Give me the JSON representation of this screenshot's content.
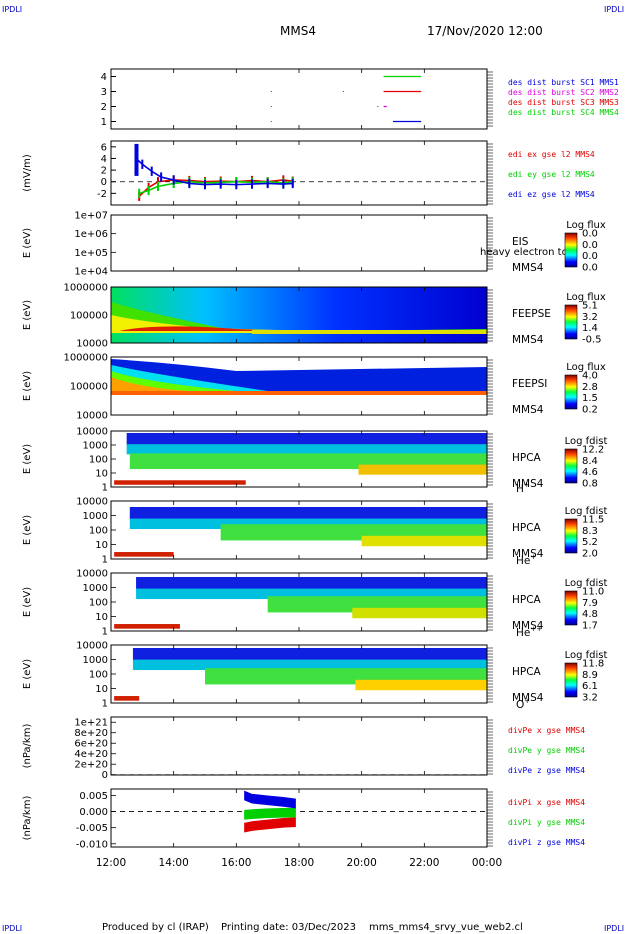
{
  "header": {
    "corner_tag": "IPDLI",
    "spacecraft": "MMS4",
    "datetime": "17/Nov/2020 12:00"
  },
  "footer": {
    "produced_by": "Produced by cl (IRAP)",
    "printing_date": "Printing date: 03/Dec/2023",
    "script_name": "mms_mms4_srvy_vue_web2.cl"
  },
  "time_axis": {
    "ticks": [
      "12:00",
      "14:00",
      "16:00",
      "18:00",
      "20:00",
      "22:00",
      "00:00"
    ],
    "start_hour": 12,
    "end_hour": 24
  },
  "colors": {
    "red": "#e00000",
    "green": "#00d000",
    "blue": "#0000e0",
    "magenta": "#e000e0",
    "dark_blue": "#0000a0"
  },
  "chart_data": [
    {
      "type": "line",
      "panel": "burst",
      "ylim": [
        0.5,
        4.5
      ],
      "yticks": [
        "1",
        "2",
        "3",
        "4"
      ],
      "legend": [
        {
          "name": "des dist burst SC1 MMS1",
          "color": "#0000e0"
        },
        {
          "name": "des dist burst SC2 MMS2",
          "color": "#e000e0"
        },
        {
          "name": "des dist burst SC3 MMS3",
          "color": "#e00000"
        },
        {
          "name": "des dist burst SC4 MMS4",
          "color": "#00d000"
        }
      ],
      "intervals": [
        {
          "level": 4,
          "start": 20.7,
          "end": 21.9,
          "color": "#00d000"
        },
        {
          "level": 3,
          "start": 20.7,
          "end": 21.9,
          "color": "#e00000"
        },
        {
          "level": 2,
          "start": 20.7,
          "end": 20.8,
          "color": "#e000e0"
        },
        {
          "level": 1,
          "start": 21.0,
          "end": 21.9,
          "color": "#0000e0"
        }
      ]
    },
    {
      "type": "line",
      "panel": "edi",
      "ylabel": "(mV/m)",
      "ylim": [
        -4,
        7
      ],
      "yticks": [
        "6",
        "4",
        "2",
        "0",
        "-2"
      ],
      "legend": [
        {
          "name": "edi ex gse l2 MMS4",
          "color": "#e00000"
        },
        {
          "name": "edi ey gse l2 MMS4",
          "color": "#00d000"
        },
        {
          "name": "edi ez gse l2 MMS4",
          "color": "#0000e0"
        }
      ],
      "series": [
        {
          "name": "edi ex gse l2 MMS4",
          "x": [
            12.9,
            13.2,
            13.5,
            14.0,
            14.5,
            15.0,
            15.5,
            16.0,
            16.5,
            17.0,
            17.5,
            17.8
          ],
          "y": [
            -2.5,
            -1.0,
            0.0,
            0.3,
            0.2,
            0.0,
            0.1,
            0.0,
            0.2,
            0.0,
            0.3,
            0.1
          ]
        },
        {
          "name": "edi ey gse l2 MMS4",
          "x": [
            12.9,
            13.2,
            13.5,
            14.0,
            14.5,
            15.0,
            15.5,
            16.0,
            16.5,
            17.0,
            17.5,
            17.8
          ],
          "y": [
            -2.0,
            -1.5,
            -0.8,
            -0.3,
            0.0,
            -0.2,
            -0.1,
            0.0,
            -0.1,
            0.0,
            -0.2,
            0.0
          ]
        },
        {
          "name": "edi ez gse l2 MMS4",
          "x": [
            12.8,
            13.0,
            13.3,
            13.6,
            14.0,
            14.5,
            15.0,
            15.5,
            16.0,
            16.5,
            17.0,
            17.5,
            17.8
          ],
          "y": [
            4.0,
            3.0,
            1.8,
            0.8,
            0.3,
            -0.3,
            -0.5,
            -0.4,
            -0.5,
            -0.4,
            -0.3,
            -0.4,
            -0.3
          ]
        }
      ]
    },
    {
      "type": "heatmap",
      "panel": "eis",
      "ylabel": "E (eV)",
      "yticks": [
        "1e+07",
        "1e+06",
        "1e+05",
        "1e+04"
      ],
      "instrument": "EIS",
      "spacecraft": "MMS4",
      "overlay_text": "heavy electron to",
      "colorbar_title": "Log flux",
      "colorbar_ticks": [
        "0.0",
        "0.0",
        "0.0",
        "0.0"
      ]
    },
    {
      "type": "heatmap",
      "panel": "feepse",
      "ylabel": "E (eV)",
      "yticks": [
        "1000000",
        "100000",
        "10000"
      ],
      "instrument": "FEEPSE",
      "spacecraft": "MMS4",
      "colorbar_title": "Log flux",
      "colorbar_ticks": [
        "5.1",
        "3.2",
        "1.4",
        "-0.5"
      ]
    },
    {
      "type": "heatmap",
      "panel": "feepsi",
      "ylabel": "E (eV)",
      "yticks": [
        "1000000",
        "100000",
        "10000"
      ],
      "instrument": "FEEPSI",
      "spacecraft": "MMS4",
      "colorbar_title": "Log flux",
      "colorbar_ticks": [
        "4.0",
        "2.8",
        "1.5",
        "0.2"
      ]
    },
    {
      "type": "heatmap",
      "panel": "hpca_h",
      "ylabel": "E (eV)",
      "yticks": [
        "10000",
        "1000",
        "100",
        "10",
        "1"
      ],
      "instrument": "HPCA",
      "spacecraft": "MMS4",
      "species": "H",
      "species_sup": "+",
      "colorbar_title": "Log fdist",
      "colorbar_ticks": [
        "12.2",
        "8.4",
        "4.6",
        "0.8"
      ]
    },
    {
      "type": "heatmap",
      "panel": "hpca_he",
      "ylabel": "E (eV)",
      "yticks": [
        "10000",
        "1000",
        "100",
        "10",
        "1"
      ],
      "instrument": "HPCA",
      "spacecraft": "MMS4",
      "species": "He",
      "species_sup": "+",
      "colorbar_title": "Log fdist",
      "colorbar_ticks": [
        "11.5",
        "8.3",
        "5.2",
        "2.0"
      ]
    },
    {
      "type": "heatmap",
      "panel": "hpca_hepp",
      "ylabel": "E (eV)",
      "yticks": [
        "10000",
        "1000",
        "100",
        "10",
        "1"
      ],
      "instrument": "HPCA",
      "spacecraft": "MMS4",
      "species": "He",
      "species_sup": "++",
      "colorbar_title": "Log fdist",
      "colorbar_ticks": [
        "11.0",
        "7.9",
        "4.8",
        "1.7"
      ]
    },
    {
      "type": "heatmap",
      "panel": "hpca_o",
      "ylabel": "E (eV)",
      "yticks": [
        "10000",
        "1000",
        "100",
        "10",
        "1"
      ],
      "instrument": "HPCA",
      "spacecraft": "MMS4",
      "species": "O",
      "species_sup": "+",
      "colorbar_title": "Log fdist",
      "colorbar_ticks": [
        "11.8",
        "8.9",
        "6.1",
        "3.2"
      ]
    },
    {
      "type": "line",
      "panel": "divpe",
      "ylabel": "(nPa/km)",
      "ylim": [
        -5e+18,
        1.1e+21
      ],
      "yticks": [
        "1e+21",
        "8e+20",
        "6e+20",
        "4e+20",
        "2e+20",
        "0"
      ],
      "legend": [
        {
          "name": "divPe x gse MMS4",
          "color": "#e00000"
        },
        {
          "name": "divPe y gse MMS4",
          "color": "#00d000"
        },
        {
          "name": "divPe z gse MMS4",
          "color": "#0000e0"
        }
      ],
      "series": []
    },
    {
      "type": "line",
      "panel": "divpi",
      "ylabel": "(nPa/km)",
      "ylim": [
        -0.011,
        0.007
      ],
      "yticks": [
        "0.005",
        "0.000",
        "-0.005",
        "-0.010"
      ],
      "legend": [
        {
          "name": "divPi x gse MMS4",
          "color": "#e00000"
        },
        {
          "name": "divPi y gse MMS4",
          "color": "#00d000"
        },
        {
          "name": "divPi z gse MMS4",
          "color": "#0000e0"
        }
      ],
      "series": [
        {
          "name": "divPi x gse MMS4",
          "x": [
            16.25,
            16.5,
            17.0,
            17.5,
            17.9
          ],
          "y": [
            -0.005,
            -0.0045,
            -0.004,
            -0.0035,
            -0.0033
          ]
        },
        {
          "name": "divPi y gse MMS4",
          "x": [
            16.25,
            16.5,
            17.0,
            17.5,
            17.9
          ],
          "y": [
            -0.001,
            -0.0008,
            -0.0005,
            -0.0004,
            -0.0003
          ]
        },
        {
          "name": "divPi z gse MMS4",
          "x": [
            16.25,
            16.5,
            17.0,
            17.5,
            17.9
          ],
          "y": [
            0.005,
            0.004,
            0.0035,
            0.003,
            0.0025
          ]
        }
      ]
    }
  ]
}
